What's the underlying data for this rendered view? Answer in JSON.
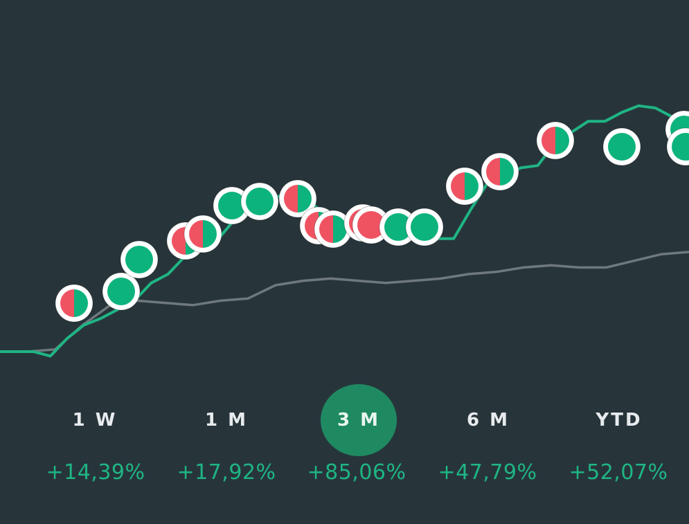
{
  "periods": [
    {
      "label": "1 W",
      "return": "+14,39%",
      "active": false
    },
    {
      "label": "1 M",
      "return": "+17,92%",
      "active": false
    },
    {
      "label": "3 M",
      "return": "+85,06%",
      "active": true
    },
    {
      "label": "6 M",
      "return": "+47,79%",
      "active": false
    },
    {
      "label": "YTD",
      "return": "+52,07%",
      "active": false
    }
  ],
  "colors": {
    "background": "#27353b",
    "portfolio_line": "#1fb584",
    "benchmark_line": "#6f797d",
    "buy": "#0db37c",
    "sell": "#ef5362",
    "active_period": "#1f8a62",
    "return_text": "#1fb584"
  },
  "chart_data": {
    "type": "line",
    "title": "",
    "xlabel": "",
    "ylabel": "",
    "series": [
      {
        "values": [
          1,
          1,
          1,
          0.8,
          1.6,
          2.2,
          2.5,
          2.9,
          3.3,
          4.1,
          4.5,
          5.3,
          5.8,
          6.1,
          7.0,
          7.7,
          7.9,
          8.1,
          8.1,
          7.4,
          6.3,
          6.3,
          6.4,
          6.4,
          6.1,
          6.3,
          6.1,
          6.1,
          7.4,
          8.6,
          8.9,
          9.3,
          9.4,
          10.4,
          10.9,
          11.4,
          11.4,
          11.8,
          12.1,
          12.0,
          11.6,
          11.8
        ]
      },
      {
        "values": [
          1,
          1,
          1.1,
          2.2,
          3.1,
          3.3,
          3.2,
          3.1,
          3.3,
          3.4,
          4.0,
          4.2,
          4.3,
          4.2,
          4.1,
          4.2,
          4.3,
          4.5,
          4.6,
          4.8,
          4.9,
          4.8,
          4.8,
          5.1,
          5.4,
          5.5
        ]
      }
    ],
    "markers": [
      {
        "type": "mixed"
      },
      {
        "type": "buy"
      },
      {
        "type": "buy"
      },
      {
        "type": "mixed"
      },
      {
        "type": "mixed"
      },
      {
        "type": "buy"
      },
      {
        "type": "buy"
      },
      {
        "type": "mixed"
      },
      {
        "type": "mixed"
      },
      {
        "type": "mixed"
      },
      {
        "type": "sell"
      },
      {
        "type": "sell"
      },
      {
        "type": "buy"
      },
      {
        "type": "buy"
      },
      {
        "type": "mixed"
      },
      {
        "type": "mixed"
      },
      {
        "type": "mixed"
      },
      {
        "type": "buy"
      },
      {
        "type": "buy"
      },
      {
        "type": "buy"
      }
    ]
  }
}
